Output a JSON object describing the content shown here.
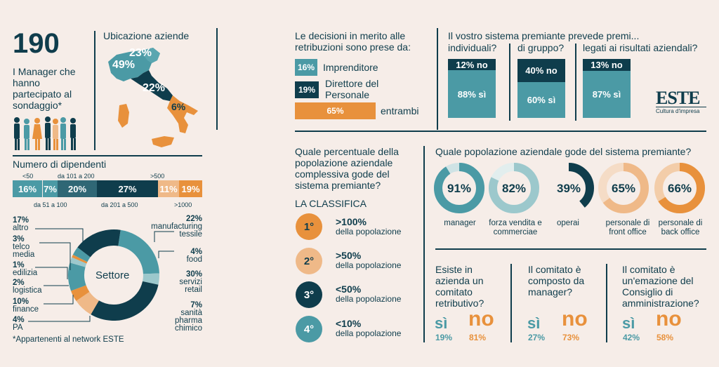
{
  "header": {
    "count": "190",
    "count_desc": "I Manager che hanno partecipato al sondaggio*"
  },
  "map": {
    "title": "Ubicazione aziende",
    "north_east": "23%",
    "north_west": "49%",
    "center": "22%",
    "south": "6%"
  },
  "employees": {
    "title": "Numero di dipendenti",
    "segments": [
      {
        "range": "<50",
        "value": "16%",
        "color": "#4b9aa5"
      },
      {
        "range": "da 51 a 100",
        "value": "7%",
        "color": "#4b9aa5"
      },
      {
        "range": "da 101 a 200",
        "value": "20%",
        "color": "#2f6775"
      },
      {
        "range": "da 201 a 500",
        "value": "27%",
        "color": "#0f3d4c"
      },
      {
        "range": ">500",
        "value": "11%",
        "color": "#efb988"
      },
      {
        "range": ">1000",
        "value": "19%",
        "color": "#e8913c"
      }
    ]
  },
  "sector": {
    "center_label": "Settore",
    "items": [
      {
        "pct": "17%",
        "label": "altro"
      },
      {
        "pct": "3%",
        "label": "telco media"
      },
      {
        "pct": "1%",
        "label": "edilizia"
      },
      {
        "pct": "2%",
        "label": "logistica"
      },
      {
        "pct": "10%",
        "label": "finance"
      },
      {
        "pct": "4%",
        "label": "PA"
      },
      {
        "pct": "22%",
        "label": "manufacturing tessile"
      },
      {
        "pct": "4%",
        "label": "food"
      },
      {
        "pct": "30%",
        "label": "servizi retail"
      },
      {
        "pct": "7%",
        "label": "sanità pharma chimico"
      }
    ],
    "footnote": "*Appartenenti al network ESTE"
  },
  "decisions": {
    "title": "Le decisioni in merito alle retribuzioni sono prese da:",
    "rows": [
      {
        "value": "16%",
        "label": "Imprenditore"
      },
      {
        "value": "19%",
        "label": "Direttore del Personale"
      },
      {
        "value": "65%",
        "label": "entrambi"
      }
    ]
  },
  "reward_system": {
    "title": "Il vostro sistema premiante prevede premi...",
    "columns": [
      {
        "header": "individuali?",
        "no": "12% no",
        "si": "88% sì"
      },
      {
        "header": "di gruppo?",
        "no": "40% no",
        "si": "60% sì"
      },
      {
        "header": "legati ai risultati aziendali?",
        "no": "13% no",
        "si": "87% sì"
      }
    ]
  },
  "logo": {
    "name": "ESTE",
    "tagline": "Cultura d'impresa"
  },
  "ranking": {
    "question": "Quale percentuale della popolazione aziendale complessiva gode del sistema premiante?",
    "title": "LA CLASSIFICA",
    "items": [
      {
        "rank": "1°",
        "value": ">100%",
        "label": "della popolazione",
        "color": "#e8913c"
      },
      {
        "rank": "2°",
        "value": ">50%",
        "label": "della popolazione",
        "color": "#efb988"
      },
      {
        "rank": "3°",
        "value": "<50%",
        "label": "della popolazione",
        "color": "#0f3d4c"
      },
      {
        "rank": "4°",
        "value": "<10%",
        "label": "della popolazione",
        "color": "#4b9aa5"
      }
    ]
  },
  "population": {
    "title": "Quale popolazione aziendale gode del sistema premiante?",
    "rings": [
      {
        "value": 91,
        "text": "91%",
        "label": "manager",
        "color": "#4b9aa5",
        "bg": "#cfe3e5"
      },
      {
        "value": 82,
        "text": "82%",
        "label": "forza vendita e commerciae",
        "color": "#9cc8cc",
        "bg": "#e2eeee"
      },
      {
        "value": 39,
        "text": "39%",
        "label": "operai",
        "color": "#0f3d4c",
        "bg": "#f6ede8"
      },
      {
        "value": 65,
        "text": "65%",
        "label": "personale di front office",
        "color": "#efb988",
        "bg": "#f5dcc6"
      },
      {
        "value": 66,
        "text": "66%",
        "label": "personale di back office",
        "color": "#e8913c",
        "bg": "#f3cda9"
      }
    ]
  },
  "committee": [
    {
      "question": "Esiste in azienda un comitato retributivo?",
      "si": "sì",
      "si_pct": "19%",
      "no": "no",
      "no_pct": "81%"
    },
    {
      "question": "Il comitato è composto da manager?",
      "si": "sì",
      "si_pct": "27%",
      "no": "no",
      "no_pct": "73%"
    },
    {
      "question": "Il comitato è un'emazione del Consiglio di amministrazione?",
      "si": "sì",
      "si_pct": "42%",
      "no": "no",
      "no_pct": "58%"
    }
  ]
}
